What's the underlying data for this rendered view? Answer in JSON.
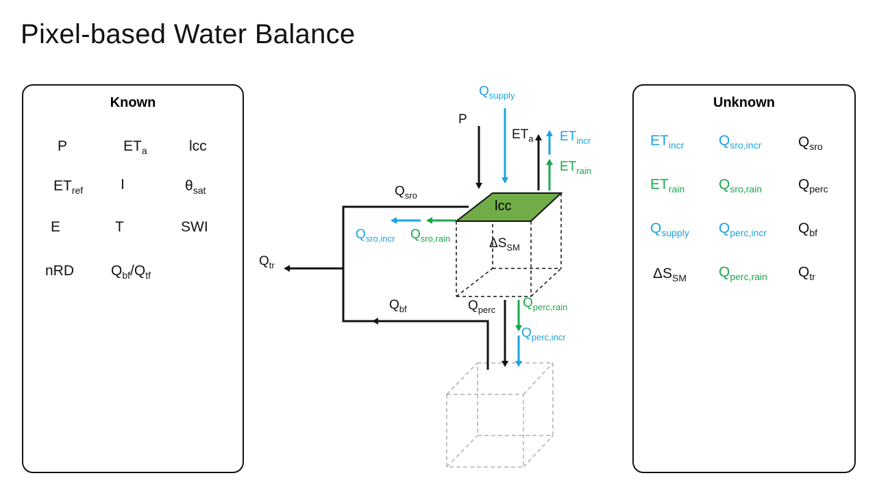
{
  "title": "Pixel-based Water Balance",
  "known": {
    "heading": "Known",
    "items": [
      {
        "base": "P",
        "sub": ""
      },
      {
        "base": "ET",
        "sub": "a"
      },
      {
        "base": "lcc",
        "sub": ""
      },
      {
        "base": "ET",
        "sub": "ref"
      },
      {
        "base": "I",
        "sub": ""
      },
      {
        "base": "θ",
        "sub": "sat"
      },
      {
        "base": "E",
        "sub": ""
      },
      {
        "base": "T",
        "sub": ""
      },
      {
        "base": "SWI",
        "sub": ""
      },
      {
        "base": "nRD",
        "sub": ""
      },
      {
        "base": "Q",
        "sub": "bf",
        "sep": "/Q",
        "sub2": "tf"
      }
    ]
  },
  "unknown": {
    "heading": "Unknown",
    "items": [
      {
        "base": "ET",
        "sub": "incr",
        "color": "blue"
      },
      {
        "base": "Q",
        "sub": "sro,incr",
        "color": "blue"
      },
      {
        "base": "Q",
        "sub": "sro",
        "color": "black"
      },
      {
        "base": "ET",
        "sub": "rain",
        "color": "green"
      },
      {
        "base": "Q",
        "sub": "sro,rain",
        "color": "green"
      },
      {
        "base": "Q",
        "sub": "perc",
        "color": "black"
      },
      {
        "base": "Q",
        "sub": "supply",
        "color": "blue"
      },
      {
        "base": "Q",
        "sub": "perc,incr",
        "color": "green"
      },
      {
        "base": "Q",
        "sub": "bf",
        "color": "black"
      },
      {
        "base": "ΔS",
        "sub": "SM",
        "color": "black"
      },
      {
        "base": "Q",
        "sub": "perc,rain",
        "color": "green"
      },
      {
        "base": "Q",
        "sub": "tr",
        "color": "black"
      }
    ]
  },
  "diagram": {
    "lcc": "lcc",
    "q_supply": {
      "base": "Q",
      "sub": "supply"
    },
    "p": {
      "base": "P",
      "sub": ""
    },
    "et_a": {
      "base": "ET",
      "sub": "a"
    },
    "et_incr": {
      "base": "ET",
      "sub": "incr"
    },
    "et_rain": {
      "base": "ET",
      "sub": "rain"
    },
    "q_sro": {
      "base": "Q",
      "sub": "sro"
    },
    "q_sro_incr": {
      "base": "Q",
      "sub": "sro,incr"
    },
    "q_sro_rain": {
      "base": "Q",
      "sub": "sro,rain"
    },
    "delta_s_sm": {
      "base": "ΔS",
      "sub": "SM"
    },
    "q_tr": {
      "base": "Q",
      "sub": "tr"
    },
    "q_bf": {
      "base": "Q",
      "sub": "bf"
    },
    "q_perc": {
      "base": "Q",
      "sub": "perc"
    },
    "q_perc_rain": {
      "base": "Q",
      "sub": "perc,rain"
    },
    "q_perc_incr": {
      "base": "Q",
      "sub": "perc,incr"
    }
  },
  "colors": {
    "blue": "#1aa3e0",
    "green": "#18a84a",
    "lcc_fill": "#70ad47",
    "black": "#111111",
    "ghost": "#b0b0b0"
  }
}
